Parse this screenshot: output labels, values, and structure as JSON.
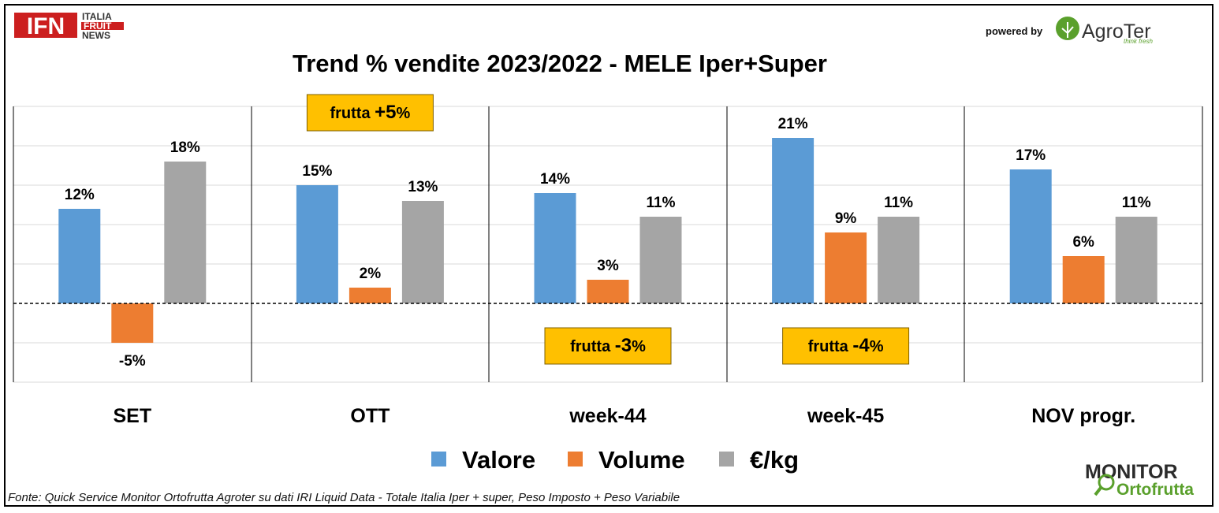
{
  "header": {
    "ifn_logo": "IFN",
    "ifn_sub": [
      "ITALIA",
      "FRUIT",
      "NEWS"
    ],
    "powered_by": "powered by",
    "agroter_name": "AgroTer",
    "agroter_tag": "think fresh"
  },
  "footer": {
    "source": "Fonte: Quick Service Monitor Ortofrutta Agroter su dati IRI Liquid Data - Totale Italia Iper + super, Peso Imposto + Peso Variabile",
    "monitor_top": "MONITOR",
    "monitor_bottom": "Ortofrutta"
  },
  "chart_data": {
    "type": "bar",
    "title": "Trend % vendite 2023/2022 - MELE Iper+Super",
    "categories": [
      "SET",
      "OTT",
      "week-44",
      "week-45",
      "NOV progr."
    ],
    "series": [
      {
        "name": "Valore",
        "values": [
          12,
          15,
          14,
          21,
          17
        ],
        "labels": [
          "12%",
          "15%",
          "14%",
          "21%",
          "17%"
        ],
        "color": "#5b9bd5"
      },
      {
        "name": "Volume",
        "values": [
          -5,
          2,
          3,
          9,
          6
        ],
        "labels": [
          "-5%",
          "2%",
          "3%",
          "9%",
          "6%"
        ],
        "color": "#ed7d31"
      },
      {
        "name": "€/kg",
        "values": [
          18,
          13,
          11,
          11,
          11
        ],
        "labels": [
          "18%",
          "13%",
          "11%",
          "11%",
          "11%"
        ],
        "color": "#a5a5a5"
      }
    ],
    "ylim": [
      -10,
      25
    ],
    "grid": true,
    "legend": "bottom",
    "annotations": [
      {
        "category": "OTT",
        "prefix": "frutta ",
        "value": "+5",
        "suffix": "%",
        "position": "top"
      },
      {
        "category": "week-44",
        "prefix": "frutta ",
        "value": "-3",
        "suffix": "%",
        "position": "bottom"
      },
      {
        "category": "week-45",
        "prefix": "frutta ",
        "value": "-4",
        "suffix": "%",
        "position": "bottom"
      }
    ],
    "annotation_color": "#ffc000"
  }
}
